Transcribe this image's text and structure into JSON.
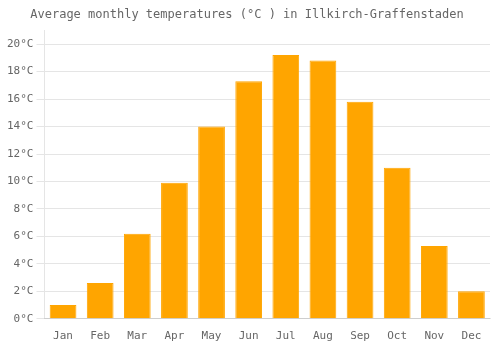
{
  "chart_data": {
    "type": "bar",
    "title": "Average monthly temperatures (°C ) in Illkirch-Graffenstaden",
    "categories": [
      "Jan",
      "Feb",
      "Mar",
      "Apr",
      "May",
      "Jun",
      "Jul",
      "Aug",
      "Sep",
      "Oct",
      "Nov",
      "Dec"
    ],
    "values": [
      1.0,
      2.6,
      6.2,
      9.9,
      14.0,
      17.3,
      19.2,
      18.8,
      15.8,
      11.0,
      5.3,
      2.0
    ],
    "color": "#FFA500",
    "ylim": [
      0,
      21
    ],
    "yticks": [
      {
        "value": 0,
        "label": "0°C"
      },
      {
        "value": 2,
        "label": "2°C"
      },
      {
        "value": 4,
        "label": "4°C"
      },
      {
        "value": 6,
        "label": "6°C"
      },
      {
        "value": 8,
        "label": "8°C"
      },
      {
        "value": 10,
        "label": "10°C"
      },
      {
        "value": 12,
        "label": "12°C"
      },
      {
        "value": 14,
        "label": "14°C"
      },
      {
        "value": 16,
        "label": "16°C"
      },
      {
        "value": 18,
        "label": "18°C"
      },
      {
        "value": 20,
        "label": "20°C"
      }
    ],
    "grid": true
  }
}
